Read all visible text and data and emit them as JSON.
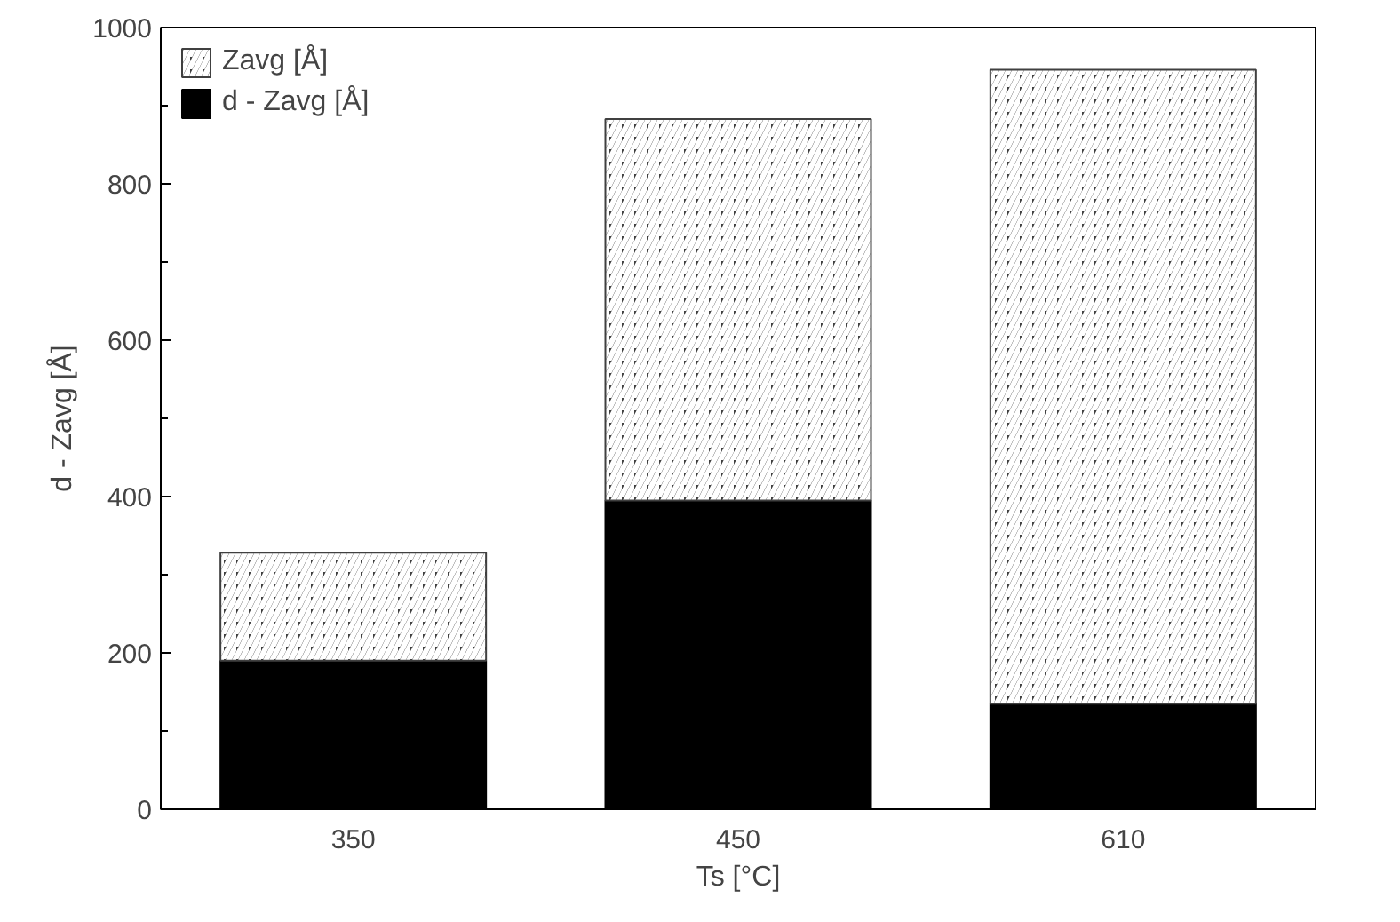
{
  "chart_data": {
    "type": "bar",
    "stacked": true,
    "xlabel": "Ts [°C]",
    "ylabel": "d - Zavg [Å]",
    "categories": [
      "350",
      "450",
      "610"
    ],
    "series": [
      {
        "name": "d - Zavg [Å]",
        "color": "#000000",
        "values": [
          190,
          395,
          135
        ]
      },
      {
        "name": "Zavg [Å]",
        "color": "#404040",
        "values": [
          138,
          488,
          811
        ]
      }
    ],
    "ylim": [
      0,
      1000
    ],
    "yticks": [
      0,
      200,
      400,
      600,
      800,
      1000
    ],
    "grid": false,
    "legend": "top left"
  }
}
